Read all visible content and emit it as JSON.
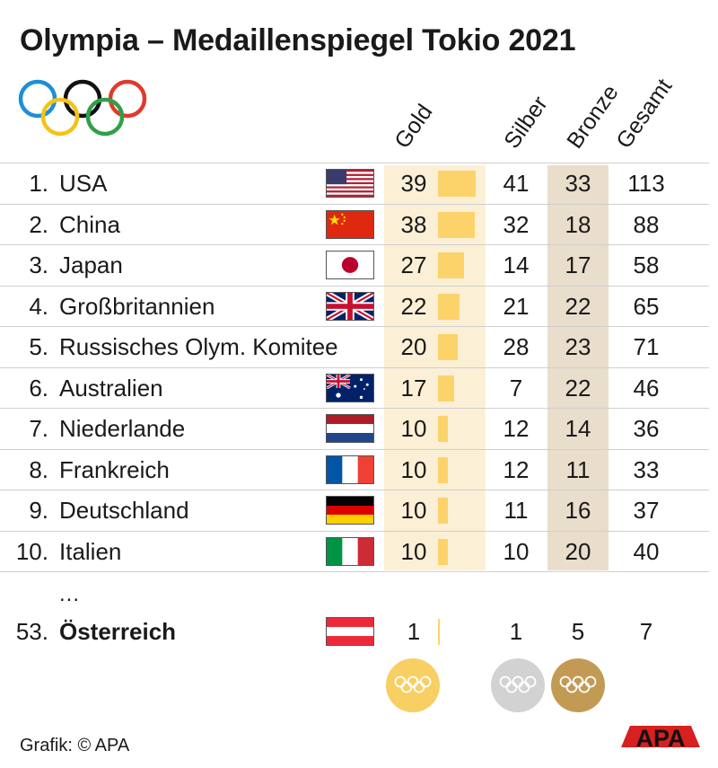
{
  "title": "Olympia – Medaillenspiegel Tokio 2021",
  "headers": {
    "gold": "Gold",
    "silver": "Silber",
    "bronze": "Bronze",
    "total": "Gesamt"
  },
  "rows": [
    {
      "rank": "1.",
      "country": "USA",
      "flag": "usa",
      "gold": 39,
      "silver": 41,
      "bronze": 33,
      "total": 113
    },
    {
      "rank": "2.",
      "country": "China",
      "flag": "china",
      "gold": 38,
      "silver": 32,
      "bronze": 18,
      "total": 88
    },
    {
      "rank": "3.",
      "country": "Japan",
      "flag": "japan",
      "gold": 27,
      "silver": 14,
      "bronze": 17,
      "total": 58
    },
    {
      "rank": "4.",
      "country": "Großbritannien",
      "flag": "uk",
      "gold": 22,
      "silver": 21,
      "bronze": 22,
      "total": 65
    },
    {
      "rank": "5.",
      "country": "Russisches Olym. Komitee",
      "flag": "",
      "gold": 20,
      "silver": 28,
      "bronze": 23,
      "total": 71
    },
    {
      "rank": "6.",
      "country": "Australien",
      "flag": "australia",
      "gold": 17,
      "silver": 7,
      "bronze": 22,
      "total": 46
    },
    {
      "rank": "7.",
      "country": "Niederlande",
      "flag": "netherlands",
      "gold": 10,
      "silver": 12,
      "bronze": 14,
      "total": 36
    },
    {
      "rank": "8.",
      "country": "Frankreich",
      "flag": "france",
      "gold": 10,
      "silver": 12,
      "bronze": 11,
      "total": 33
    },
    {
      "rank": "9.",
      "country": "Deutschland",
      "flag": "germany",
      "gold": 10,
      "silver": 11,
      "bronze": 16,
      "total": 37
    },
    {
      "rank": "10.",
      "country": "Italien",
      "flag": "italy",
      "gold": 10,
      "silver": 10,
      "bronze": 20,
      "total": 40
    }
  ],
  "ellipsis": "...",
  "austria": {
    "rank": "53.",
    "country": "Österreich",
    "flag": "austria",
    "gold": 1,
    "silver": 1,
    "bronze": 5,
    "total": 7
  },
  "credit": "Grafik: © APA",
  "logo_text": "APA",
  "colors": {
    "gold_bar": "#fcd36b",
    "gold_band": "#fbf0d6",
    "bronze_band": "#e9ddcb",
    "medal_gold": "#f7cf62",
    "medal_silver": "#d2d2d2",
    "medal_bronze": "#c39a54",
    "logo_red": "#d7201f"
  },
  "icons": [
    "olympic-rings-icon",
    "gold-medal-icon",
    "silver-medal-icon",
    "bronze-medal-icon",
    "apa-logo-icon"
  ]
}
